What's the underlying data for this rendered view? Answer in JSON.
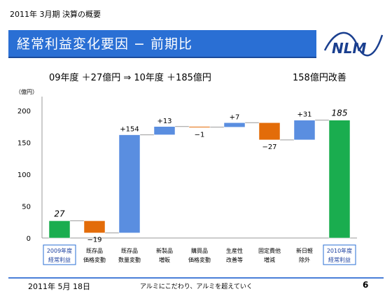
{
  "slide": {
    "subtitle": "2011年 3月期  決算の概要",
    "title": "経常利益変化要因 − 前期比",
    "headline_left": "09年度  ＋27億円  ⇒  10年度  ＋185億円",
    "headline_right": "158億円改善",
    "logo_text": "NLM",
    "footer_date": "2011年 5月 18日",
    "footer_slogan": "アルミにこだわり、アルミを超えていく",
    "page_number": "6",
    "colors": {
      "title_bar": "#2a6fd4",
      "green": "#1aad4f",
      "orange": "#e36c09",
      "blue": "#5a8ee0"
    }
  },
  "chart_data": {
    "type": "waterfall",
    "unit_label": "（億円）",
    "ylim": [
      0,
      200
    ],
    "yticks": [
      0,
      50,
      100,
      150,
      200
    ],
    "grid": false,
    "categories": [
      [
        "2009年度",
        "経常利益"
      ],
      [
        "既存品",
        "価格変動"
      ],
      [
        "既存品",
        "数量変動"
      ],
      [
        "新製品",
        "増販"
      ],
      [
        "購買品",
        "価格変動"
      ],
      [
        "生産性",
        "改善等"
      ],
      [
        "固定費他",
        "増減"
      ],
      [
        "新日軽",
        "除外"
      ],
      [
        "2010年度",
        "経常利益"
      ]
    ],
    "boxed_categories": [
      0,
      8
    ],
    "values": [
      27,
      -19,
      154,
      13,
      -1,
      7,
      -27,
      31,
      185
    ],
    "labels": [
      "27",
      "−19",
      "+154",
      "+13",
      "−1",
      "+7",
      "−27",
      "+31",
      "185"
    ],
    "kinds": [
      "total",
      "delta",
      "delta",
      "delta",
      "delta",
      "delta",
      "delta",
      "delta",
      "total"
    ],
    "colors": [
      "#1aad4f",
      "#e36c09",
      "#5a8ee0",
      "#5a8ee0",
      "#e36c09",
      "#5a8ee0",
      "#e36c09",
      "#5a8ee0",
      "#1aad4f"
    ]
  }
}
